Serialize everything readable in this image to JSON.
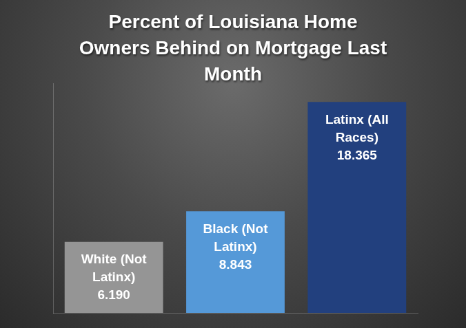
{
  "chart_data": {
    "type": "bar",
    "title": "Percent of Louisiana Home Owners Behind on Mortgage Last Month",
    "categories": [
      "White (Not Latinx)",
      "Black (Not Latinx)",
      "Latinx (All Races)"
    ],
    "values": [
      6.19,
      8.843,
      18.365
    ],
    "value_labels": [
      "6.190",
      "8.843",
      "18.365"
    ],
    "colors": [
      "#959595",
      "#5599d8",
      "#22407e"
    ],
    "ylim": [
      0,
      20
    ],
    "grid": false,
    "data_labels": true,
    "tick_labels": false
  }
}
